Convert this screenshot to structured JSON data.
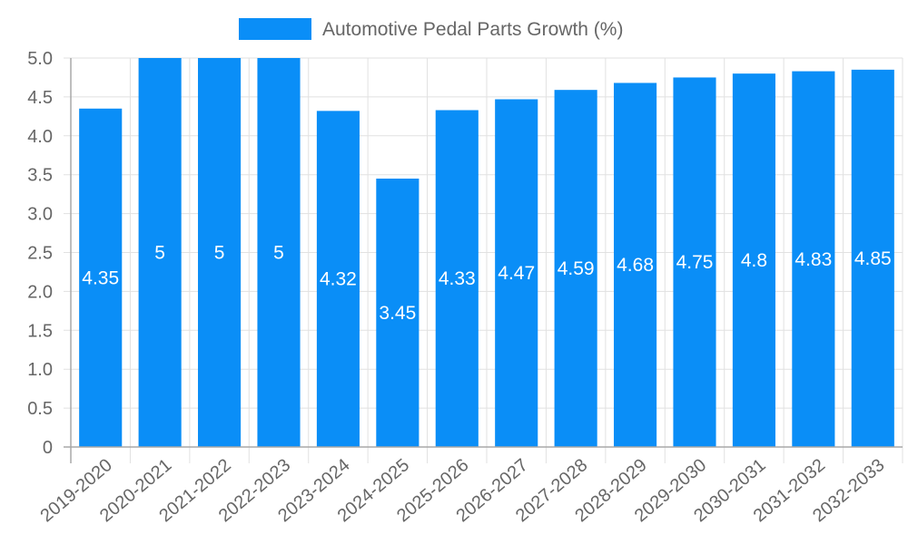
{
  "chart_data": {
    "type": "bar",
    "title": "",
    "legend": [
      {
        "label": "Automotive Pedal Parts Growth (%)",
        "color": "#0a8ef7"
      }
    ],
    "legend_position": "top",
    "categories": [
      "2019-2020",
      "2020-2021",
      "2021-2022",
      "2022-2023",
      "2023-2024",
      "2024-2025",
      "2025-2026",
      "2026-2027",
      "2027-2028",
      "2028-2029",
      "2029-2030",
      "2030-2031",
      "2031-2032",
      "2032-2033"
    ],
    "series": [
      {
        "name": "Automotive Pedal Parts Growth (%)",
        "color": "#0a8ef7",
        "values": [
          4.35,
          5,
          5,
          5,
          4.32,
          3.45,
          4.33,
          4.47,
          4.59,
          4.68,
          4.75,
          4.8,
          4.83,
          4.85
        ]
      }
    ],
    "value_labels": [
      "4.35",
      "5",
      "5",
      "5",
      "4.32",
      "3.45",
      "4.33",
      "4.47",
      "4.59",
      "4.68",
      "4.75",
      "4.8",
      "4.83",
      "4.85"
    ],
    "xlabel": "",
    "ylabel": "",
    "ylim": [
      0,
      5.0
    ],
    "y_ticks": [
      "0",
      "0.5",
      "1.0",
      "1.5",
      "2.0",
      "2.5",
      "3.0",
      "3.5",
      "4.0",
      "4.5",
      "5.0"
    ],
    "grid": true,
    "x_tick_rotation": -40
  },
  "legend": {
    "label": "Automotive Pedal Parts Growth (%)"
  }
}
